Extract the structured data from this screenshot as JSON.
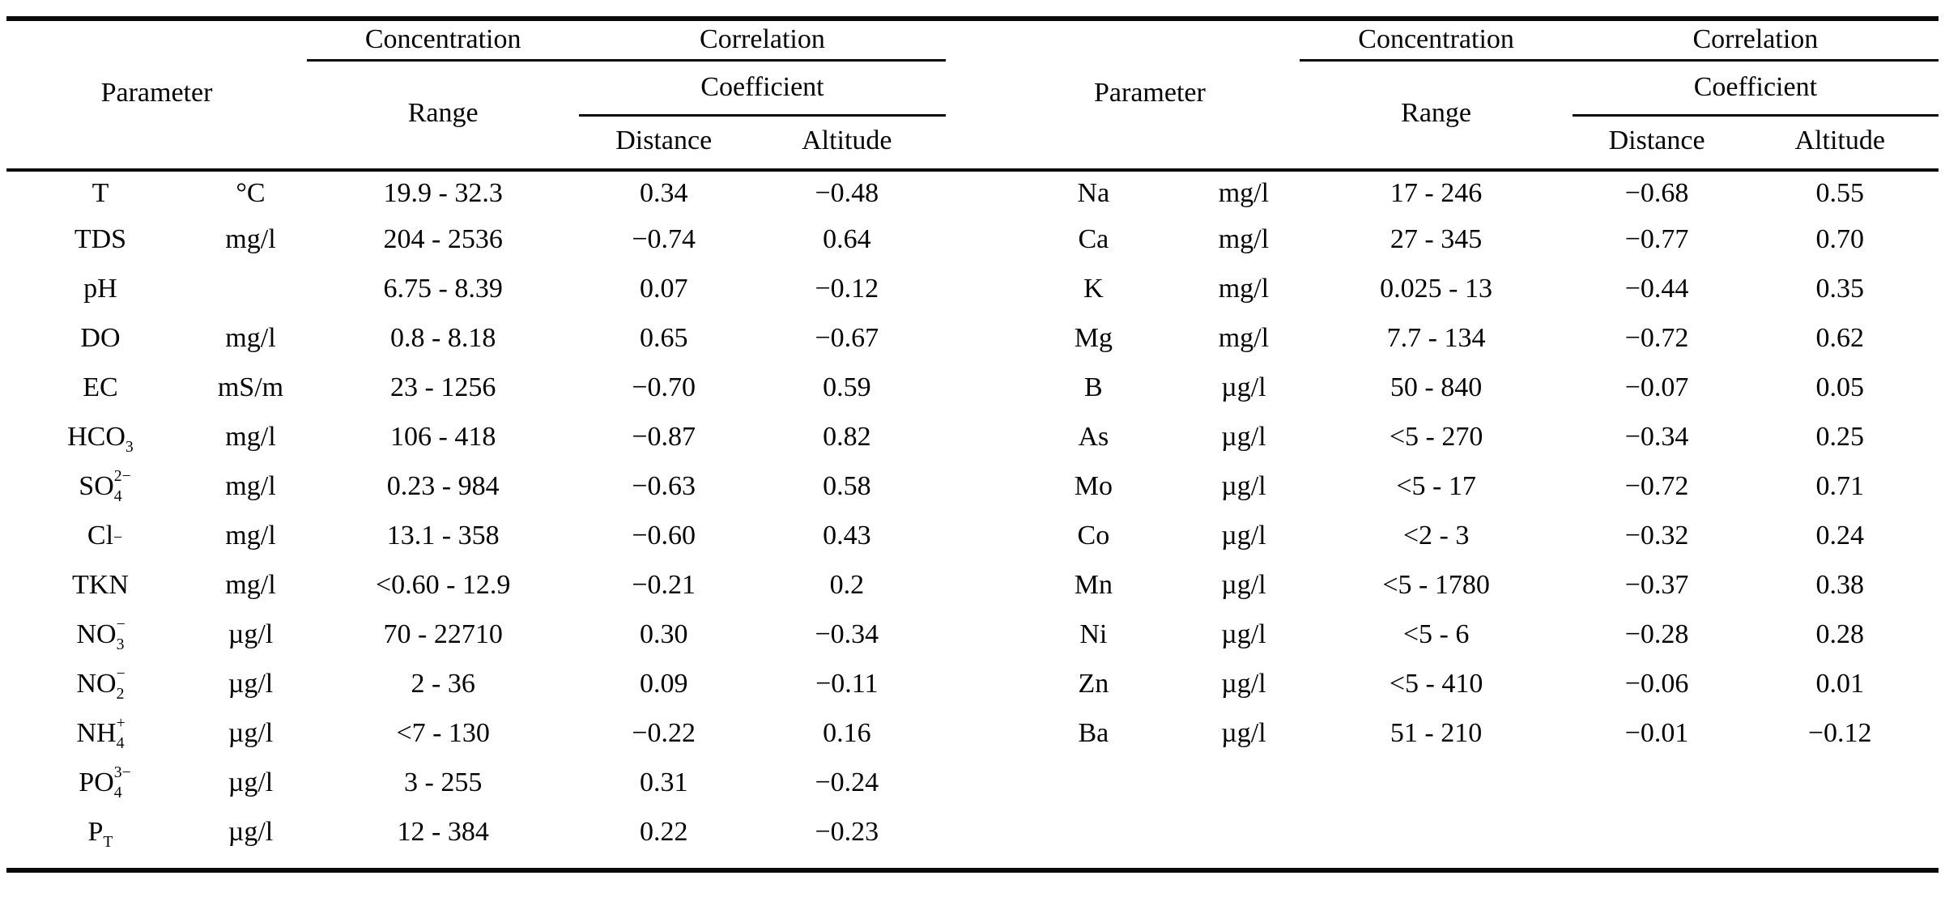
{
  "page": {
    "background": "#ffffff",
    "text_color": "#050505",
    "rule_color": "#0a0a0a"
  },
  "table": {
    "header": {
      "parameter": "Parameter",
      "concentration": "Concentration",
      "correlation": "Correlation",
      "coefficient": "Coefficient",
      "range": "Range",
      "distance": "Distance",
      "altitude": "Altitude"
    },
    "left_rows": [
      {
        "name": "T",
        "sup": "",
        "sub": "",
        "unit": "°C",
        "range": "19.9 - 32.3",
        "distance": "0.34",
        "altitude": "−0.48"
      },
      {
        "name": "TDS",
        "sup": "",
        "sub": "",
        "unit": "mg/l",
        "range": "204 - 2536",
        "distance": "−0.74",
        "altitude": "0.64"
      },
      {
        "name": "pH",
        "sup": "",
        "sub": "",
        "unit": "",
        "range": "6.75 - 8.39",
        "distance": "0.07",
        "altitude": "−0.12"
      },
      {
        "name": "DO",
        "sup": "",
        "sub": "",
        "unit": "mg/l",
        "range": "0.8 - 8.18",
        "distance": "0.65",
        "altitude": "−0.67"
      },
      {
        "name": "EC",
        "sup": "",
        "sub": "",
        "unit": "mS/m",
        "range": "23 - 1256",
        "distance": "−0.70",
        "altitude": "0.59"
      },
      {
        "name": "HCO",
        "sup": "",
        "sub": "3",
        "unit": "mg/l",
        "range": "106 - 418",
        "distance": "−0.87",
        "altitude": "0.82"
      },
      {
        "name": "SO",
        "sup": "2−",
        "sub": "4",
        "unit": "mg/l",
        "range": "0.23 - 984",
        "distance": "−0.63",
        "altitude": "0.58"
      },
      {
        "name": "Cl",
        "sup": "−",
        "sub": "",
        "unit": "mg/l",
        "range": "13.1 - 358",
        "distance": "−0.60",
        "altitude": "0.43"
      },
      {
        "name": "TKN",
        "sup": "",
        "sub": "",
        "unit": "mg/l",
        "range": "<0.60 - 12.9",
        "distance": "−0.21",
        "altitude": "0.2"
      },
      {
        "name": "NO",
        "sup": "−",
        "sub": "3",
        "unit": "µg/l",
        "range": "70 - 22710",
        "distance": "0.30",
        "altitude": "−0.34"
      },
      {
        "name": "NO",
        "sup": "−",
        "sub": "2",
        "unit": "µg/l",
        "range": "2 - 36",
        "distance": "0.09",
        "altitude": "−0.11"
      },
      {
        "name": "NH",
        "sup": "+",
        "sub": "4",
        "unit": "µg/l",
        "range": "<7 - 130",
        "distance": "−0.22",
        "altitude": "0.16"
      },
      {
        "name": "PO",
        "sup": "3−",
        "sub": "4",
        "unit": "µg/l",
        "range": "3 - 255",
        "distance": "0.31",
        "altitude": "−0.24"
      },
      {
        "name": "P",
        "sup": "",
        "sub": "T",
        "unit": "µg/l",
        "range": "12 - 384",
        "distance": "0.22",
        "altitude": "−0.23"
      }
    ],
    "right_rows": [
      {
        "name": "Na",
        "sup": "",
        "sub": "",
        "unit": "mg/l",
        "range": "17 - 246",
        "distance": "−0.68",
        "altitude": "0.55"
      },
      {
        "name": "Ca",
        "sup": "",
        "sub": "",
        "unit": "mg/l",
        "range": "27 - 345",
        "distance": "−0.77",
        "altitude": "0.70"
      },
      {
        "name": "K",
        "sup": "",
        "sub": "",
        "unit": "mg/l",
        "range": "0.025 - 13",
        "distance": "−0.44",
        "altitude": "0.35"
      },
      {
        "name": "Mg",
        "sup": "",
        "sub": "",
        "unit": "mg/l",
        "range": "7.7 - 134",
        "distance": "−0.72",
        "altitude": "0.62"
      },
      {
        "name": "B",
        "sup": "",
        "sub": "",
        "unit": "µg/l",
        "range": "50 - 840",
        "distance": "−0.07",
        "altitude": "0.05"
      },
      {
        "name": "As",
        "sup": "",
        "sub": "",
        "unit": "µg/l",
        "range": "<5 - 270",
        "distance": "−0.34",
        "altitude": "0.25"
      },
      {
        "name": "Mo",
        "sup": "",
        "sub": "",
        "unit": "µg/l",
        "range": "<5 - 17",
        "distance": "−0.72",
        "altitude": "0.71"
      },
      {
        "name": "Co",
        "sup": "",
        "sub": "",
        "unit": "µg/l",
        "range": "<2 - 3",
        "distance": "−0.32",
        "altitude": "0.24"
      },
      {
        "name": "Mn",
        "sup": "",
        "sub": "",
        "unit": "µg/l",
        "range": "<5 - 1780",
        "distance": "−0.37",
        "altitude": "0.38"
      },
      {
        "name": "Ni",
        "sup": "",
        "sub": "",
        "unit": "µg/l",
        "range": "<5 - 6",
        "distance": "−0.28",
        "altitude": "0.28"
      },
      {
        "name": "Zn",
        "sup": "",
        "sub": "",
        "unit": "µg/l",
        "range": "<5 - 410",
        "distance": "−0.06",
        "altitude": "0.01"
      },
      {
        "name": "Ba",
        "sup": "",
        "sub": "",
        "unit": "µg/l",
        "range": "51 - 210",
        "distance": "−0.01",
        "altitude": "−0.12"
      }
    ]
  }
}
